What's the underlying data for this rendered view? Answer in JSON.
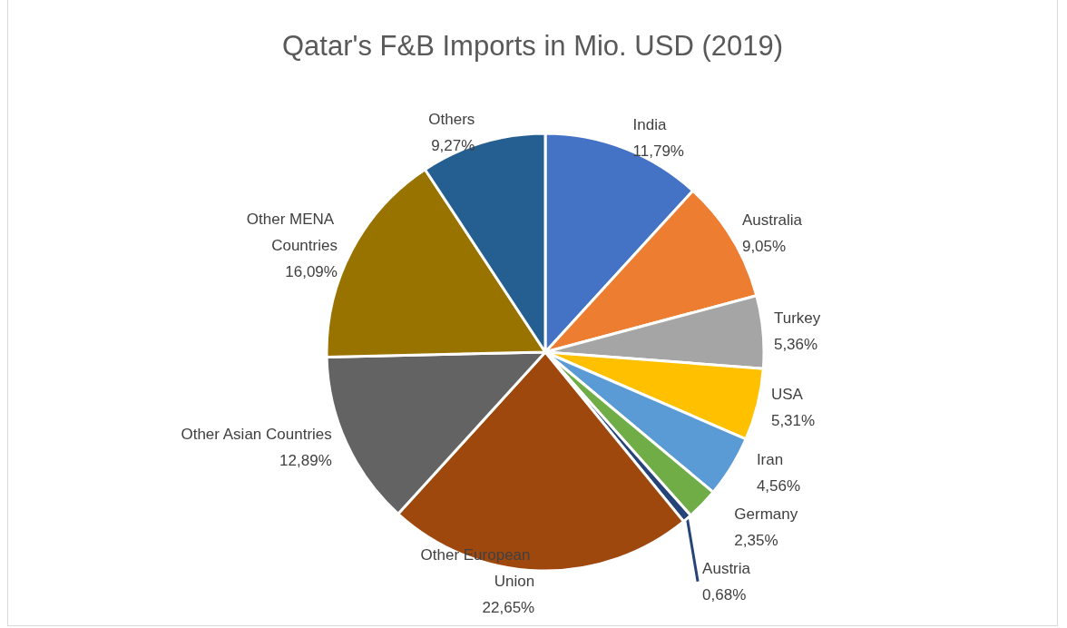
{
  "chart_data": {
    "type": "pie",
    "title": "Qatar's F&B Imports in Mio. USD (2019)",
    "categories": [
      "India",
      "Australia",
      "Turkey",
      "USA",
      "Iran",
      "Germany",
      "Austria",
      "Other European Union",
      "Other Asian Countries",
      "Other MENA Countries",
      "Others"
    ],
    "values": [
      11.79,
      9.05,
      5.36,
      5.31,
      4.56,
      2.35,
      0.68,
      22.65,
      12.89,
      16.09,
      9.27
    ],
    "value_labels": [
      "11,79%",
      "9,05%",
      "5,36%",
      "5,31%",
      "4,56%",
      "2,35%",
      "0,68%",
      "22,65%",
      "12,89%",
      "16,09%",
      "9,27%"
    ],
    "colors": [
      "#4472c4",
      "#ed7d31",
      "#a5a5a5",
      "#ffc000",
      "#5b9bd5",
      "#70ad47",
      "#264478",
      "#9e480e",
      "#636363",
      "#997300",
      "#255e91"
    ],
    "legend": false
  }
}
